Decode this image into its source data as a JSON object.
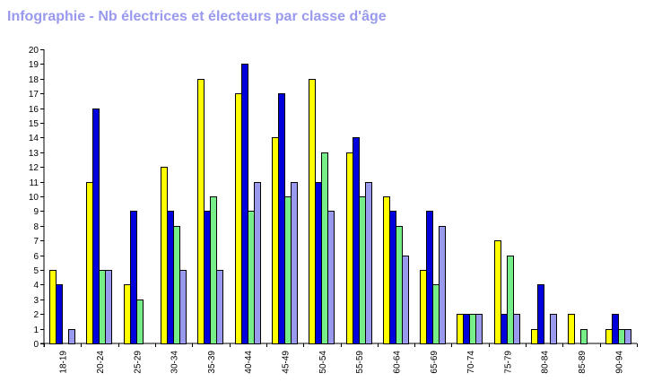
{
  "title": "Infographie - Nb électrices et électeurs par classe d'âge",
  "chart_data": {
    "type": "bar",
    "title": "Infographie - Nb électrices et électeurs par classe d'âge",
    "xlabel": "",
    "ylabel": "",
    "ylim": [
      0,
      20
    ],
    "y_ticks": [
      0,
      1,
      2,
      3,
      4,
      5,
      6,
      7,
      8,
      9,
      10,
      11,
      12,
      13,
      14,
      15,
      16,
      17,
      18,
      19,
      20
    ],
    "grid": false,
    "legend": "none",
    "categories": [
      "18-19",
      "20-24",
      "25-29",
      "30-34",
      "35-39",
      "40-44",
      "45-49",
      "50-54",
      "55-59",
      "60-64",
      "65-69",
      "70-74",
      "75-79",
      "80-84",
      "85-89",
      "90-94"
    ],
    "series": [
      {
        "color": "#ffff00",
        "values": [
          5,
          11,
          4,
          12,
          18,
          17,
          14,
          18,
          13,
          10,
          5,
          2,
          7,
          1,
          2,
          1
        ]
      },
      {
        "color": "#0000dd",
        "values": [
          4,
          16,
          9,
          9,
          9,
          19,
          17,
          11,
          14,
          9,
          9,
          2,
          2,
          4,
          0,
          2
        ]
      },
      {
        "color": "#77ee88",
        "values": [
          0,
          5,
          3,
          8,
          10,
          9,
          10,
          13,
          10,
          8,
          4,
          2,
          6,
          0,
          1,
          1
        ]
      },
      {
        "color": "#9999ee",
        "values": [
          1,
          5,
          0,
          5,
          5,
          11,
          11,
          9,
          11,
          6,
          8,
          2,
          2,
          2,
          0,
          1
        ]
      }
    ]
  }
}
